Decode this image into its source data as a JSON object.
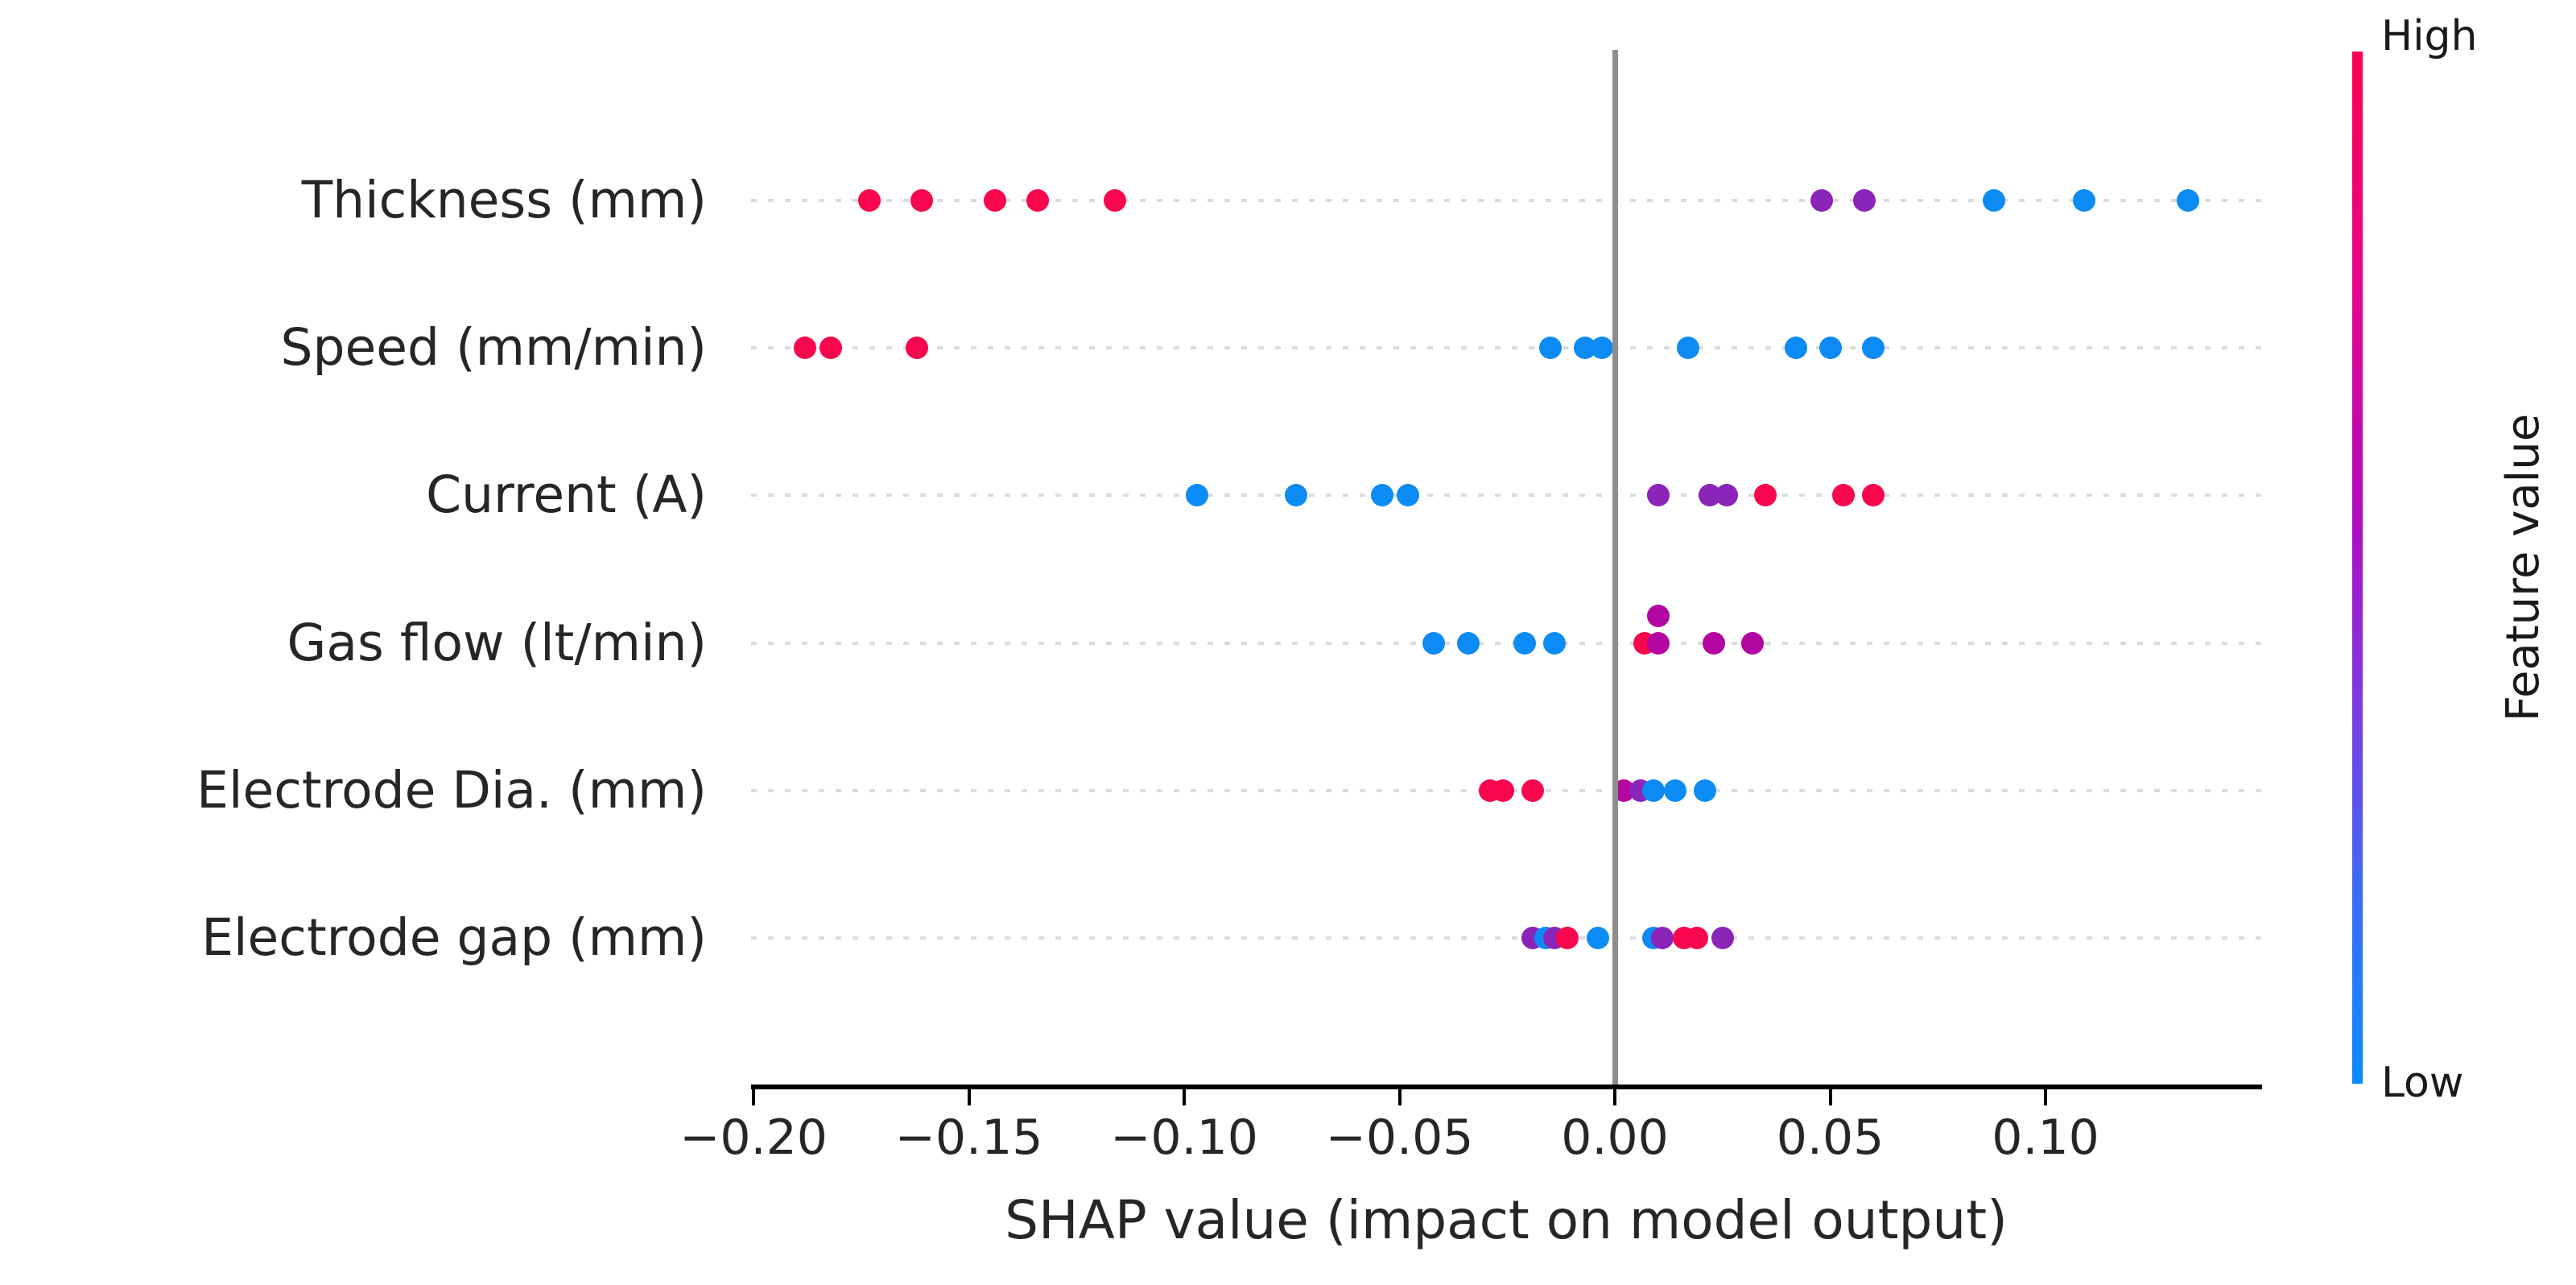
{
  "chart_data": {
    "type": "scatter",
    "subtype": "shap-beeswarm-summary",
    "xlabel": "SHAP value (impact on model output)",
    "xlim": [
      -0.2006,
      0.1503
    ],
    "grid": "dotted-row-guides",
    "zero_reference_line": 0.0,
    "x_ticks": [
      -0.2,
      -0.15,
      -0.1,
      -0.05,
      0.0,
      0.05,
      0.1
    ],
    "x_tick_labels": [
      "−0.20",
      "−0.15",
      "−0.10",
      "−0.05",
      "0.00",
      "0.05",
      "0.10"
    ],
    "colors": {
      "high_red": "#f9074d",
      "magenta": "#b306a0",
      "purple": "#8b24b8",
      "low_blue": "#0d8bf5",
      "zero_line_gray": "#8e8e8e",
      "guide_gray": "#dcdcdc"
    },
    "colorbar": {
      "label": "Feature value",
      "high_label": "High",
      "low_label": "Low",
      "gradient_top_to_bottom": [
        "#ff0051",
        "#e60589",
        "#b10dc0",
        "#7d3be0",
        "#3a6cf5",
        "#0a8bfb"
      ]
    },
    "features": [
      {
        "label": "Thickness (mm)",
        "points": [
          {
            "v": -0.173,
            "c": "high_red"
          },
          {
            "v": -0.161,
            "c": "high_red"
          },
          {
            "v": -0.144,
            "c": "high_red"
          },
          {
            "v": -0.134,
            "c": "high_red"
          },
          {
            "v": -0.116,
            "c": "high_red"
          },
          {
            "v": 0.048,
            "c": "purple"
          },
          {
            "v": 0.058,
            "c": "purple"
          },
          {
            "v": 0.088,
            "c": "low_blue"
          },
          {
            "v": 0.109,
            "c": "low_blue"
          },
          {
            "v": 0.133,
            "c": "low_blue"
          }
        ]
      },
      {
        "label": "Speed (mm/min)",
        "points": [
          {
            "v": -0.188,
            "c": "high_red"
          },
          {
            "v": -0.182,
            "c": "high_red"
          },
          {
            "v": -0.162,
            "c": "high_red"
          },
          {
            "v": -0.015,
            "c": "low_blue"
          },
          {
            "v": -0.007,
            "c": "low_blue"
          },
          {
            "v": -0.003,
            "c": "low_blue"
          },
          {
            "v": 0.017,
            "c": "low_blue"
          },
          {
            "v": 0.042,
            "c": "low_blue"
          },
          {
            "v": 0.05,
            "c": "low_blue"
          },
          {
            "v": 0.06,
            "c": "low_blue"
          }
        ]
      },
      {
        "label": "Current (A)",
        "points": [
          {
            "v": -0.097,
            "c": "low_blue"
          },
          {
            "v": -0.074,
            "c": "low_blue"
          },
          {
            "v": -0.054,
            "c": "low_blue"
          },
          {
            "v": -0.048,
            "c": "low_blue"
          },
          {
            "v": 0.01,
            "c": "purple"
          },
          {
            "v": 0.022,
            "c": "purple"
          },
          {
            "v": 0.026,
            "c": "purple"
          },
          {
            "v": 0.035,
            "c": "high_red"
          },
          {
            "v": 0.053,
            "c": "high_red"
          },
          {
            "v": 0.06,
            "c": "high_red"
          }
        ]
      },
      {
        "label": "Gas flow (lt/min)",
        "points": [
          {
            "v": -0.042,
            "c": "low_blue"
          },
          {
            "v": -0.034,
            "c": "low_blue"
          },
          {
            "v": -0.021,
            "c": "low_blue"
          },
          {
            "v": -0.014,
            "c": "low_blue"
          },
          {
            "v": 0.007,
            "c": "high_red"
          },
          {
            "v": 0.01,
            "c": "magenta"
          },
          {
            "v": 0.01,
            "c": "magenta",
            "dy": -34
          },
          {
            "v": 0.023,
            "c": "magenta"
          },
          {
            "v": 0.032,
            "c": "magenta"
          }
        ]
      },
      {
        "label": "Electrode Dia. (mm)",
        "points": [
          {
            "v": -0.029,
            "c": "high_red"
          },
          {
            "v": -0.026,
            "c": "high_red"
          },
          {
            "v": -0.019,
            "c": "high_red"
          },
          {
            "v": 0.002,
            "c": "magenta"
          },
          {
            "v": 0.006,
            "c": "purple"
          },
          {
            "v": 0.009,
            "c": "low_blue"
          },
          {
            "v": 0.014,
            "c": "low_blue"
          },
          {
            "v": 0.021,
            "c": "low_blue"
          }
        ]
      },
      {
        "label": "Electrode gap (mm)",
        "points": [
          {
            "v": -0.019,
            "c": "purple"
          },
          {
            "v": -0.016,
            "c": "low_blue"
          },
          {
            "v": -0.014,
            "c": "purple"
          },
          {
            "v": -0.011,
            "c": "high_red"
          },
          {
            "v": -0.004,
            "c": "low_blue"
          },
          {
            "v": 0.009,
            "c": "low_blue"
          },
          {
            "v": 0.011,
            "c": "purple"
          },
          {
            "v": 0.016,
            "c": "high_red"
          },
          {
            "v": 0.019,
            "c": "high_red"
          },
          {
            "v": 0.025,
            "c": "purple"
          }
        ]
      }
    ]
  }
}
